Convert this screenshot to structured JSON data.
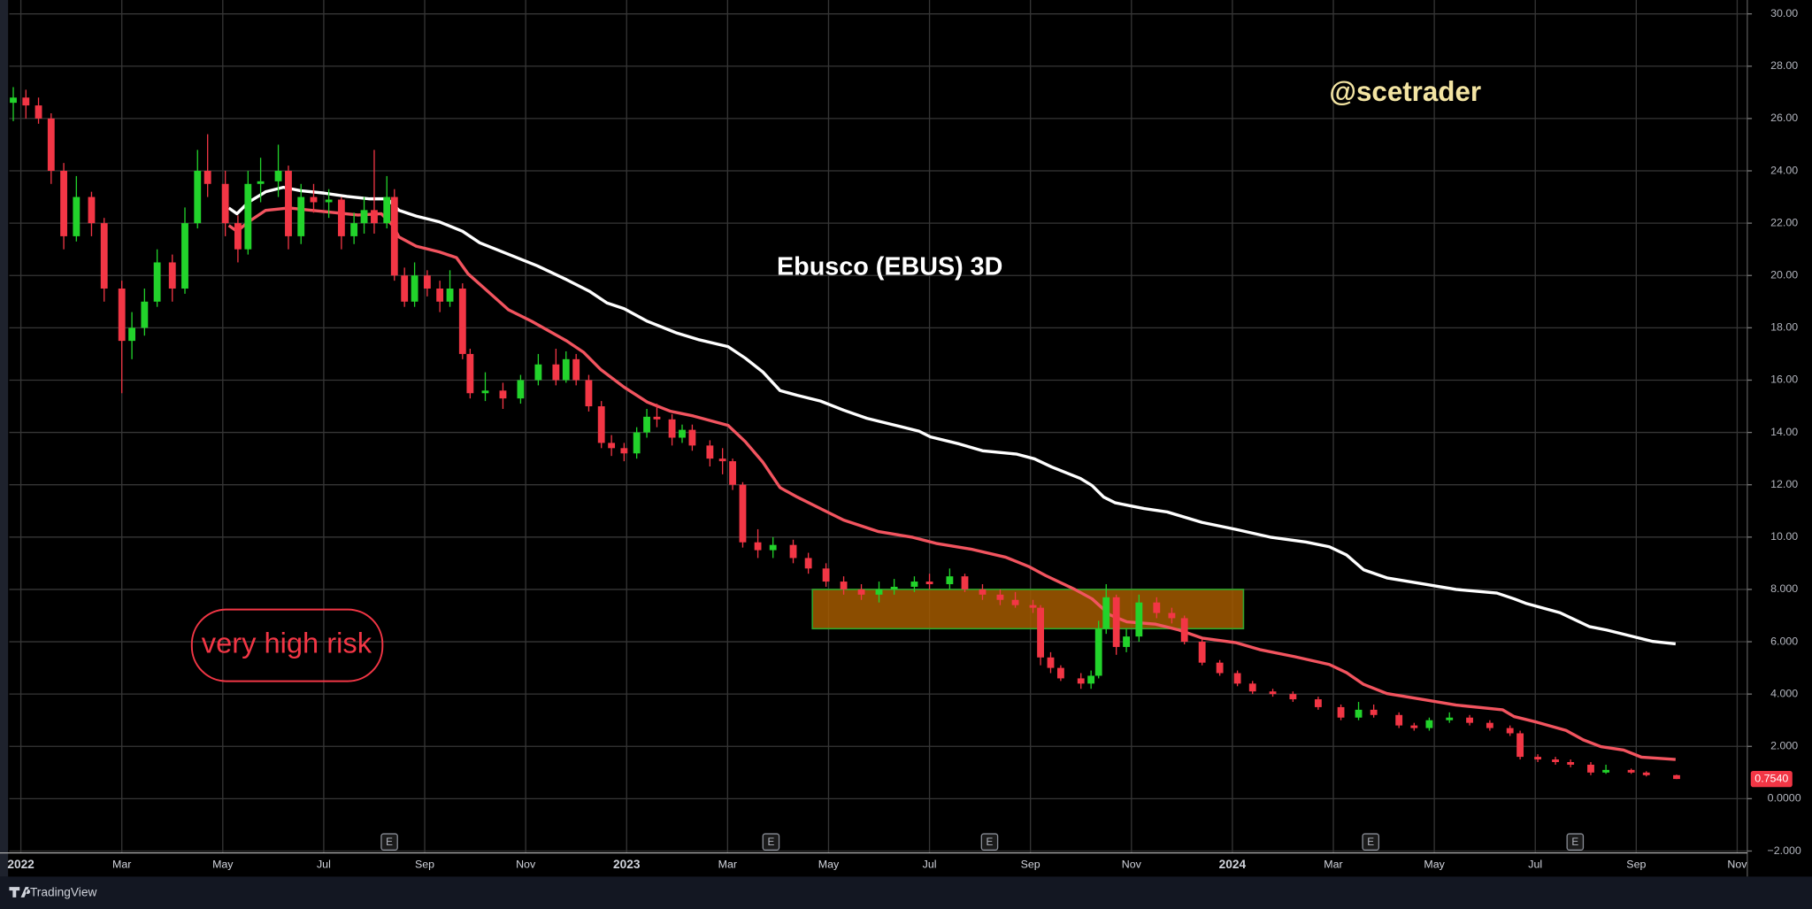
{
  "chart_data": {
    "type": "candlestick",
    "title": "Ebusco (EBUS) 3D",
    "annotations": {
      "author": "@scetrader",
      "risk": "very high risk"
    },
    "up_color": "#22d32b",
    "down_color": "#f23645",
    "x": [
      -0.15,
      0.1,
      0.35,
      0.6,
      0.85,
      1.1,
      1.4,
      1.65,
      2.0,
      2.2,
      2.45,
      2.7,
      3.0,
      3.25,
      3.5,
      3.7,
      4.05,
      4.3,
      4.5,
      4.75,
      5.1,
      5.3,
      5.55,
      5.8,
      6.1,
      6.35,
      6.6,
      6.8,
      7.0,
      7.25,
      7.4,
      7.6,
      7.8,
      8.05,
      8.3,
      8.5,
      8.75,
      8.9,
      9.2,
      9.55,
      9.9,
      10.25,
      10.6,
      10.8,
      11.0,
      11.25,
      11.5,
      11.7,
      11.95,
      12.2,
      12.4,
      12.6,
      12.9,
      13.1,
      13.3,
      13.65,
      13.9,
      14.1,
      14.3,
      14.6,
      14.9,
      15.3,
      15.6,
      15.95,
      16.3,
      16.65,
      17.0,
      17.3,
      17.7,
      18.0,
      18.4,
      18.7,
      19.05,
      19.4,
      19.7,
      20.05,
      20.2,
      20.4,
      20.6,
      21.0,
      21.2,
      21.35,
      21.5,
      21.7,
      21.9,
      22.15,
      22.5,
      22.8,
      23.05,
      23.4,
      23.75,
      24.1,
      24.4,
      24.8,
      25.2,
      25.7,
      26.15,
      26.5,
      26.8,
      27.3,
      27.6,
      27.9,
      28.3,
      28.7,
      29.1,
      29.5,
      29.7,
      30.05,
      30.4,
      30.7,
      31.1,
      31.4,
      31.9,
      32.2,
      32.8
    ],
    "open": [
      26.6,
      26.8,
      26.5,
      26.0,
      24.0,
      21.5,
      23.0,
      22.0,
      19.5,
      17.5,
      18.0,
      19.0,
      20.5,
      19.5,
      22.0,
      24.0,
      23.5,
      22.0,
      21.0,
      23.5,
      23.6,
      24.0,
      21.5,
      23.0,
      22.8,
      22.9,
      21.5,
      22.0,
      22.5,
      22.0,
      23.0,
      20.0,
      19.0,
      20.0,
      19.5,
      19.0,
      19.5,
      17.0,
      15.5,
      15.6,
      15.3,
      16.0,
      16.6,
      16.0,
      16.8,
      16.0,
      15.0,
      13.6,
      13.4,
      13.2,
      14.0,
      14.6,
      14.5,
      13.8,
      14.1,
      13.5,
      13.0,
      12.9,
      12.0,
      9.8,
      9.5,
      9.7,
      9.2,
      8.8,
      8.3,
      8.0,
      7.8,
      8.0,
      8.1,
      8.3,
      8.2,
      8.5,
      8.0,
      7.8,
      7.6,
      7.4,
      7.3,
      5.4,
      5.0,
      4.6,
      4.4,
      4.7,
      6.5,
      7.7,
      5.8,
      6.2,
      7.5,
      7.1,
      6.9,
      6.0,
      5.2,
      4.8,
      4.4,
      4.1,
      4.0,
      3.8,
      3.5,
      3.1,
      3.4,
      3.2,
      2.8,
      2.7,
      3.0,
      3.1,
      2.9,
      2.7,
      2.5,
      1.6,
      1.5,
      1.4,
      1.3,
      1.0,
      1.1,
      1.0,
      0.9
    ],
    "high": [
      27.2,
      27.1,
      26.8,
      26.2,
      24.3,
      23.8,
      23.2,
      22.2,
      19.8,
      18.6,
      19.5,
      21.0,
      20.8,
      22.6,
      24.8,
      25.4,
      24.0,
      22.3,
      24.0,
      24.5,
      25.0,
      24.2,
      23.5,
      23.5,
      23.3,
      23.0,
      22.4,
      23.0,
      24.8,
      23.8,
      23.3,
      20.3,
      20.5,
      20.2,
      19.8,
      20.2,
      19.7,
      17.2,
      16.3,
      15.9,
      16.2,
      17.0,
      17.2,
      17.1,
      17.0,
      16.2,
      15.2,
      13.9,
      13.6,
      14.2,
      14.9,
      15.1,
      14.7,
      14.3,
      14.3,
      13.7,
      13.4,
      13.0,
      12.1,
      10.3,
      10.0,
      9.9,
      9.4,
      9.0,
      8.5,
      8.2,
      8.3,
      8.4,
      8.5,
      8.6,
      8.8,
      8.6,
      8.2,
      8.0,
      7.9,
      7.6,
      7.4,
      5.6,
      5.1,
      4.8,
      4.9,
      6.8,
      8.2,
      7.8,
      6.5,
      7.8,
      7.7,
      7.3,
      7.0,
      6.1,
      5.3,
      4.9,
      4.5,
      4.2,
      4.1,
      3.9,
      3.6,
      3.7,
      3.6,
      3.3,
      2.9,
      3.1,
      3.3,
      3.2,
      3.0,
      2.8,
      2.6,
      1.7,
      1.6,
      1.5,
      1.4,
      1.3,
      1.15,
      1.05,
      0.92
    ],
    "low": [
      25.9,
      26.0,
      25.8,
      23.5,
      21.0,
      21.3,
      21.5,
      19.0,
      15.5,
      16.8,
      17.7,
      18.8,
      19.0,
      19.3,
      21.8,
      23.0,
      21.5,
      20.5,
      20.8,
      22.8,
      23.0,
      21.0,
      21.2,
      22.4,
      22.2,
      21.0,
      21.2,
      21.6,
      21.6,
      21.8,
      19.8,
      18.8,
      18.8,
      19.2,
      18.6,
      18.8,
      16.8,
      15.3,
      15.2,
      14.9,
      15.1,
      15.8,
      15.8,
      15.9,
      15.8,
      14.8,
      13.4,
      13.1,
      12.9,
      13.0,
      13.8,
      14.2,
      13.5,
      13.6,
      13.3,
      12.7,
      12.4,
      11.8,
      9.6,
      9.2,
      9.2,
      9.0,
      8.6,
      8.1,
      7.8,
      7.6,
      7.5,
      7.8,
      7.9,
      8.0,
      8.0,
      7.9,
      7.6,
      7.4,
      7.3,
      7.1,
      5.1,
      4.8,
      4.5,
      4.2,
      4.2,
      4.6,
      6.3,
      5.5,
      5.6,
      6.0,
      6.9,
      6.7,
      5.9,
      5.1,
      4.7,
      4.3,
      4.0,
      3.9,
      3.7,
      3.4,
      3.0,
      3.0,
      3.1,
      2.7,
      2.6,
      2.6,
      2.9,
      2.8,
      2.6,
      2.4,
      1.5,
      1.4,
      1.3,
      1.2,
      0.9,
      0.95,
      0.95,
      0.85,
      0.75
    ],
    "close": [
      26.8,
      26.5,
      26.0,
      24.0,
      21.5,
      23.0,
      22.0,
      19.5,
      17.5,
      18.0,
      19.0,
      20.5,
      19.5,
      22.0,
      24.0,
      23.5,
      22.0,
      21.0,
      23.5,
      23.6,
      24.0,
      21.5,
      23.0,
      22.8,
      22.9,
      21.5,
      22.0,
      22.5,
      22.0,
      23.0,
      20.0,
      19.0,
      20.0,
      19.5,
      19.0,
      19.5,
      17.0,
      15.5,
      15.6,
      15.3,
      16.0,
      16.6,
      16.0,
      16.8,
      16.0,
      15.0,
      13.6,
      13.4,
      13.2,
      14.0,
      14.6,
      14.5,
      13.8,
      14.1,
      13.5,
      13.0,
      12.9,
      12.0,
      9.8,
      9.5,
      9.7,
      9.2,
      8.8,
      8.3,
      8.0,
      7.8,
      8.0,
      8.1,
      8.3,
      8.2,
      8.5,
      8.0,
      7.8,
      7.6,
      7.4,
      7.3,
      5.4,
      5.0,
      4.6,
      4.4,
      4.7,
      6.5,
      7.7,
      5.8,
      6.2,
      7.5,
      7.1,
      6.9,
      6.0,
      5.2,
      4.8,
      4.4,
      4.1,
      4.0,
      3.8,
      3.5,
      3.1,
      3.4,
      3.2,
      2.8,
      2.7,
      3.0,
      3.1,
      2.9,
      2.7,
      2.5,
      1.6,
      1.5,
      1.4,
      1.3,
      1.0,
      1.1,
      1.0,
      0.9,
      0.754
    ],
    "overlays": [
      {
        "color": "#ffffff",
        "x": [
          4.12,
          4.28,
          4.51,
          4.85,
          5.2,
          5.54,
          6.0,
          6.46,
          6.91,
          7.26,
          7.49,
          7.83,
          8.29,
          8.75,
          9.09,
          9.66,
          10.23,
          10.81,
          11.26,
          11.61,
          11.95,
          12.41,
          12.98,
          13.44,
          14.01,
          14.35,
          14.7,
          15.04,
          15.38,
          15.84,
          16.3,
          16.76,
          17.33,
          17.79,
          18.02,
          18.59,
          19.05,
          19.73,
          20.08,
          20.42,
          20.99,
          21.22,
          21.45,
          21.68,
          22.25,
          22.71,
          23.4,
          24.08,
          24.77,
          25.46,
          25.92,
          26.26,
          26.6,
          27.06,
          27.75,
          28.43,
          29.24,
          29.58,
          29.81,
          30.49,
          31.07,
          31.41,
          31.87,
          32.33,
          32.78
        ],
        "values": [
          22.58,
          22.36,
          22.8,
          23.2,
          23.37,
          23.24,
          23.15,
          23.02,
          22.93,
          22.93,
          22.49,
          22.27,
          22.05,
          21.69,
          21.25,
          20.81,
          20.37,
          19.84,
          19.4,
          18.95,
          18.73,
          18.25,
          17.81,
          17.54,
          17.28,
          16.84,
          16.31,
          15.6,
          15.42,
          15.2,
          14.85,
          14.54,
          14.27,
          14.05,
          13.83,
          13.56,
          13.3,
          13.17,
          12.99,
          12.68,
          12.24,
          11.97,
          11.53,
          11.31,
          11.09,
          10.96,
          10.56,
          10.29,
          9.99,
          9.81,
          9.63,
          9.32,
          8.75,
          8.44,
          8.22,
          8.0,
          7.86,
          7.64,
          7.47,
          7.11,
          6.58,
          6.45,
          6.23,
          6.01,
          5.92
        ]
      },
      {
        "color": "#f2545f",
        "x": [
          4.12,
          4.28,
          4.51,
          4.85,
          5.31,
          5.77,
          6.23,
          6.68,
          7.14,
          7.37,
          7.49,
          7.83,
          8.29,
          8.63,
          8.86,
          9.2,
          9.66,
          10.12,
          10.81,
          11.15,
          11.49,
          11.95,
          12.41,
          12.87,
          13.32,
          14.01,
          14.35,
          14.7,
          15.04,
          15.38,
          15.84,
          16.3,
          16.99,
          17.67,
          18.13,
          18.82,
          19.51,
          19.96,
          20.3,
          20.88,
          21.22,
          21.57,
          21.91,
          22.48,
          22.94,
          23.4,
          24.08,
          24.54,
          25.23,
          25.92,
          26.26,
          26.6,
          27.06,
          27.75,
          28.43,
          29.35,
          29.58,
          30.04,
          30.61,
          30.95,
          31.3,
          31.75,
          32.1,
          32.78
        ],
        "values": [
          21.91,
          21.69,
          22.05,
          22.49,
          22.58,
          22.49,
          22.4,
          22.31,
          22.36,
          21.91,
          21.47,
          21.12,
          20.9,
          20.68,
          20.06,
          19.48,
          18.69,
          18.25,
          17.5,
          17.06,
          16.4,
          15.73,
          15.16,
          14.81,
          14.63,
          14.27,
          13.65,
          12.86,
          11.89,
          11.53,
          11.09,
          10.65,
          10.21,
          9.99,
          9.76,
          9.54,
          9.23,
          8.88,
          8.53,
          8.0,
          7.64,
          7.03,
          6.76,
          6.67,
          6.45,
          6.14,
          5.96,
          5.7,
          5.43,
          5.13,
          4.82,
          4.37,
          4.02,
          3.8,
          3.58,
          3.4,
          3.14,
          2.92,
          2.61,
          2.25,
          1.99,
          1.86,
          1.59,
          1.5
        ]
      }
    ],
    "zone": {
      "x": [
        15.68,
        24.22
      ],
      "y": [
        6.5,
        8.0
      ],
      "color": "#a35a00",
      "border": "#2ea62e"
    },
    "earnings": {
      "label": "E",
      "x": [
        7.3,
        14.86,
        19.19,
        26.74,
        30.79
      ]
    },
    "last_price": {
      "value": 0.754,
      "label": "0.7540"
    },
    "xlim": [
      -0.23,
      34.2
    ],
    "ylim": [
      -2.05,
      30.53
    ],
    "xticks": [
      {
        "value": 0,
        "label": "2022"
      },
      {
        "value": 2,
        "label": "Mar"
      },
      {
        "value": 4,
        "label": "May"
      },
      {
        "value": 6,
        "label": "Jul"
      },
      {
        "value": 8,
        "label": "Sep"
      },
      {
        "value": 10,
        "label": "Nov"
      },
      {
        "value": 12,
        "label": "2023"
      },
      {
        "value": 14,
        "label": "Mar"
      },
      {
        "value": 16,
        "label": "May"
      },
      {
        "value": 18,
        "label": "Jul"
      },
      {
        "value": 20,
        "label": "Sep"
      },
      {
        "value": 22,
        "label": "Nov"
      },
      {
        "value": 24,
        "label": "2024"
      },
      {
        "value": 26,
        "label": "Mar"
      },
      {
        "value": 28,
        "label": "May"
      },
      {
        "value": 30,
        "label": "Jul"
      },
      {
        "value": 32,
        "label": "Sep"
      },
      {
        "value": 34,
        "label": "Nov"
      }
    ],
    "yticks": [
      {
        "value": -2,
        "label": "−2.000"
      },
      {
        "value": 0,
        "label": "0.0000"
      },
      {
        "value": 2,
        "label": "2.000"
      },
      {
        "value": 4,
        "label": "4.000"
      },
      {
        "value": 6,
        "label": "6.000"
      },
      {
        "value": 8,
        "label": "8.000"
      },
      {
        "value": 10,
        "label": "10.00"
      },
      {
        "value": 12,
        "label": "12.00"
      },
      {
        "value": 14,
        "label": "14.00"
      },
      {
        "value": 16,
        "label": "16.00"
      },
      {
        "value": 18,
        "label": "18.00"
      },
      {
        "value": 20,
        "label": "20.00"
      },
      {
        "value": 22,
        "label": "22.00"
      },
      {
        "value": 24,
        "label": "24.00"
      },
      {
        "value": 26,
        "label": "26.00"
      },
      {
        "value": 28,
        "label": "28.00"
      },
      {
        "value": 30,
        "label": "30.00"
      }
    ],
    "grid": true
  },
  "footer": {
    "brand": "TradingView"
  }
}
